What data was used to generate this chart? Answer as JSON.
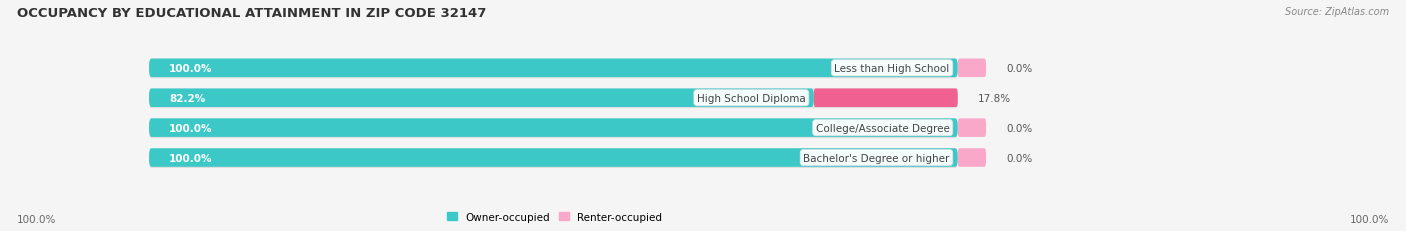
{
  "title": "OCCUPANCY BY EDUCATIONAL ATTAINMENT IN ZIP CODE 32147",
  "source": "Source: ZipAtlas.com",
  "categories": [
    "Less than High School",
    "High School Diploma",
    "College/Associate Degree",
    "Bachelor's Degree or higher"
  ],
  "owner_values": [
    100.0,
    82.2,
    100.0,
    100.0
  ],
  "renter_values": [
    0.0,
    17.8,
    0.0,
    0.0
  ],
  "owner_color": "#3dc8c8",
  "renter_color_low": "#f9a8c9",
  "renter_color_high": "#f06090",
  "bar_bg_color": "#e0e0e0",
  "shadow_color": "#c8c8c8",
  "background_color": "#f5f5f5",
  "title_fontsize": 9.5,
  "source_fontsize": 7,
  "label_fontsize": 7.5,
  "tick_fontsize": 7.5,
  "legend_fontsize": 7.5,
  "owner_label_color": "white",
  "renter_label_color": "#555555",
  "category_label_color": "#444444",
  "bottom_tick_left": "100.0%",
  "bottom_tick_right": "100.0%"
}
